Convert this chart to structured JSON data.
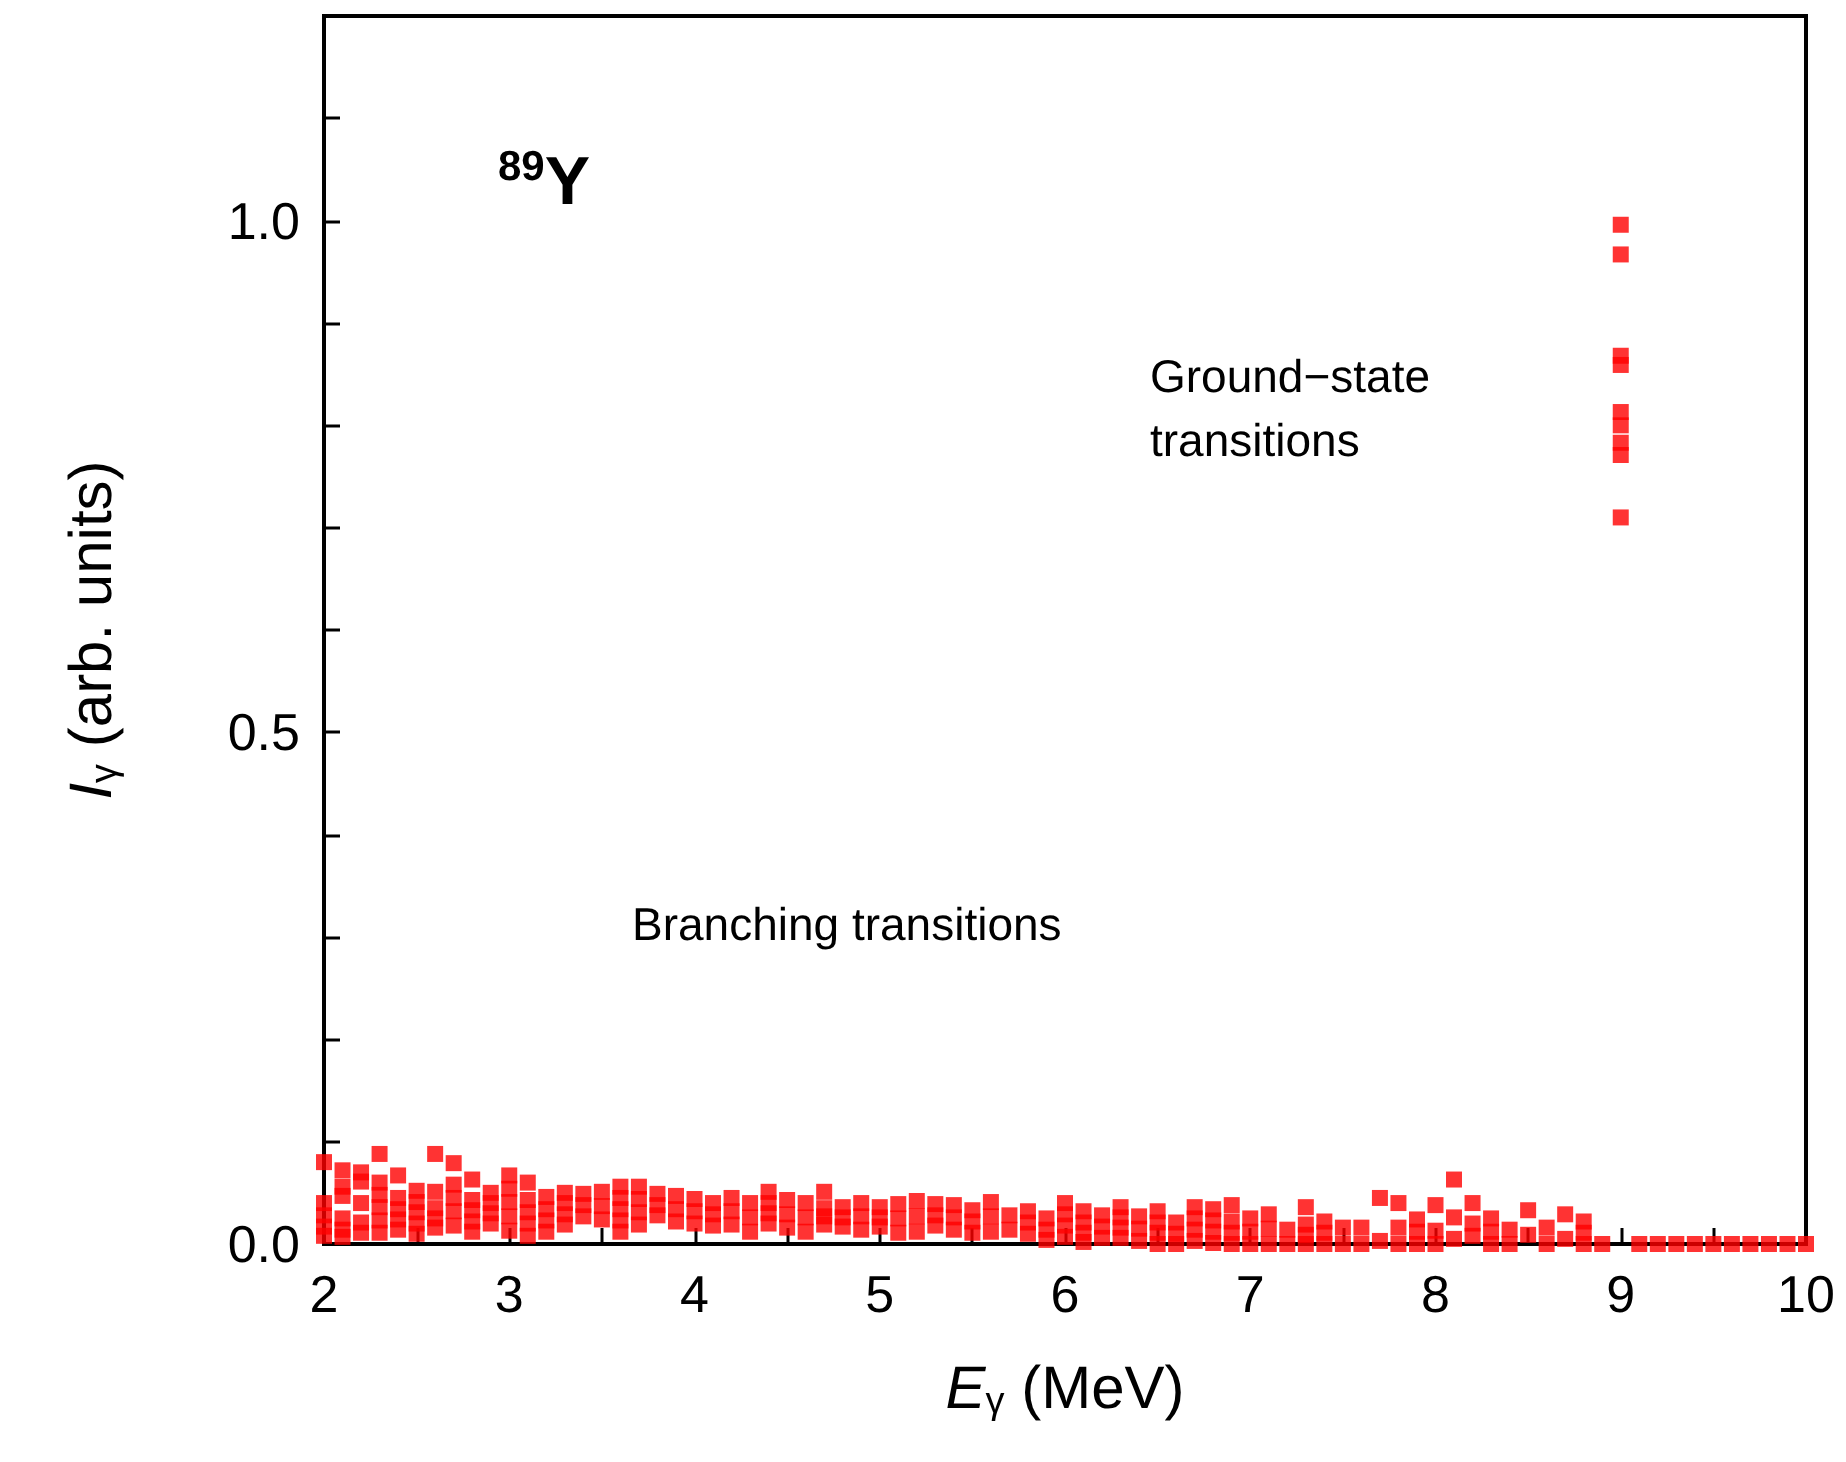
{
  "chart_data": {
    "type": "scatter",
    "title": "$^{89}$Y",
    "xlabel": "E$_{γ}$ (MeV)",
    "ylabel": "I$_{γ}$ (arb. units)",
    "annotations": [
      "Ground−state transitions",
      "Branching transitions"
    ],
    "marker": "square",
    "grid": false,
    "xlim": [
      2,
      10
    ],
    "xticks": [
      2,
      {
        "value": 2.5,
        "label": null
      },
      3,
      {
        "value": 3.5,
        "label": null
      },
      4,
      {
        "value": 4.5,
        "label": null
      },
      5,
      {
        "value": 5.5,
        "label": null
      },
      6,
      {
        "value": 6.5,
        "label": null
      },
      7,
      {
        "value": 7.5,
        "label": null
      },
      8,
      {
        "value": 8.5,
        "label": null
      },
      9,
      {
        "value": 9.5,
        "label": null
      },
      10
    ],
    "ylim": [
      0,
      1.2
    ],
    "yticks": [
      {
        "value": 0,
        "label": "0.0"
      },
      {
        "value": 0.1,
        "label": null
      },
      {
        "value": 0.2,
        "label": null
      },
      {
        "value": 0.3,
        "label": null
      },
      {
        "value": 0.4,
        "label": null
      },
      {
        "value": 0.5,
        "label": "0.5"
      },
      {
        "value": 0.6,
        "label": null
      },
      {
        "value": 0.7,
        "label": null
      },
      {
        "value": 0.8,
        "label": null
      },
      {
        "value": 0.9,
        "label": null
      },
      {
        "value": 1.0,
        "label": "1.0"
      },
      {
        "value": 1.1,
        "label": null
      }
    ],
    "series": [
      {
        "color": "#ff0000",
        "x": [
          2.0,
          2.0,
          2.0,
          2.0,
          2.0,
          2.1,
          2.1,
          2.1,
          2.1,
          2.1,
          2.1,
          2.2,
          2.2,
          2.2,
          2.2,
          2.2,
          2.3,
          2.3,
          2.3,
          2.3,
          2.3,
          2.3,
          2.4,
          2.4,
          2.4,
          2.4,
          2.4,
          2.5,
          2.5,
          2.5,
          2.5,
          2.5,
          2.6,
          2.6,
          2.6,
          2.6,
          2.6,
          2.7,
          2.7,
          2.7,
          2.7,
          2.7,
          2.8,
          2.8,
          2.8,
          2.8,
          2.8,
          2.9,
          2.9,
          2.9,
          2.9,
          3.0,
          3.0,
          3.0,
          3.0,
          3.0,
          3.1,
          3.1,
          3.1,
          3.1,
          3.1,
          3.2,
          3.2,
          3.2,
          3.2,
          3.3,
          3.3,
          3.3,
          3.3,
          3.4,
          3.4,
          3.4,
          3.5,
          3.5,
          3.5,
          3.6,
          3.6,
          3.6,
          3.6,
          3.6,
          3.7,
          3.7,
          3.7,
          3.7,
          3.8,
          3.8,
          3.8,
          3.9,
          3.9,
          3.9,
          4.0,
          4.0,
          4.0,
          4.1,
          4.1,
          4.1,
          4.2,
          4.2,
          4.2,
          4.3,
          4.3,
          4.3,
          4.4,
          4.4,
          4.4,
          4.4,
          4.5,
          4.5,
          4.5,
          4.6,
          4.6,
          4.6,
          4.7,
          4.7,
          4.7,
          4.7,
          4.8,
          4.8,
          4.8,
          4.9,
          4.9,
          4.9,
          5.0,
          5.0,
          5.0,
          5.1,
          5.1,
          5.1,
          5.2,
          5.2,
          5.2,
          5.3,
          5.3,
          5.3,
          5.4,
          5.4,
          5.4,
          5.5,
          5.5,
          5.5,
          5.6,
          5.6,
          5.6,
          5.7,
          5.7,
          5.8,
          5.8,
          5.8,
          5.9,
          5.9,
          5.9,
          6.0,
          6.0,
          6.0,
          6.0,
          6.1,
          6.1,
          6.1,
          6.1,
          6.2,
          6.2,
          6.2,
          6.3,
          6.3,
          6.3,
          6.3,
          6.4,
          6.4,
          6.4,
          6.5,
          6.5,
          6.5,
          6.5,
          6.6,
          6.6,
          6.6,
          6.7,
          6.7,
          6.7,
          6.7,
          6.8,
          6.8,
          6.8,
          6.8,
          6.9,
          6.9,
          6.9,
          6.9,
          7.0,
          7.0,
          7.0,
          7.1,
          7.1,
          7.1,
          7.2,
          7.2,
          7.3,
          7.3,
          7.3,
          7.3,
          7.4,
          7.4,
          7.4,
          7.5,
          7.5,
          7.6,
          7.6,
          7.7,
          7.7,
          7.8,
          7.8,
          7.8,
          7.9,
          7.9,
          7.9,
          8.0,
          8.0,
          8.0,
          8.1,
          8.1,
          8.1,
          8.2,
          8.2,
          8.2,
          8.3,
          8.3,
          8.3,
          8.4,
          8.4,
          8.5,
          8.5,
          8.6,
          8.6,
          8.7,
          8.7,
          8.8,
          8.8,
          8.8,
          8.9,
          9.0,
          9.0,
          9.0,
          9.0,
          9.0,
          9.0,
          9.0,
          9.0,
          9.0,
          9.1,
          9.2,
          9.3,
          9.4,
          9.5,
          9.6,
          9.7,
          9.8,
          9.9,
          10.0
        ],
        "values": [
          0.08,
          0.04,
          0.028,
          0.017,
          0.008,
          0.072,
          0.056,
          0.047,
          0.025,
          0.014,
          0.007,
          0.07,
          0.061,
          0.04,
          0.021,
          0.011,
          0.088,
          0.06,
          0.048,
          0.036,
          0.023,
          0.011,
          0.067,
          0.045,
          0.034,
          0.024,
          0.014,
          0.052,
          0.041,
          0.031,
          0.02,
          0.01,
          0.088,
          0.051,
          0.035,
          0.025,
          0.016,
          0.079,
          0.058,
          0.045,
          0.032,
          0.018,
          0.063,
          0.043,
          0.033,
          0.022,
          0.012,
          0.05,
          0.04,
          0.03,
          0.02,
          0.067,
          0.054,
          0.041,
          0.027,
          0.013,
          0.06,
          0.043,
          0.031,
          0.02,
          0.008,
          0.046,
          0.034,
          0.023,
          0.012,
          0.05,
          0.04,
          0.029,
          0.019,
          0.049,
          0.038,
          0.027,
          0.051,
          0.037,
          0.024,
          0.056,
          0.045,
          0.034,
          0.023,
          0.012,
          0.056,
          0.044,
          0.031,
          0.019,
          0.049,
          0.038,
          0.028,
          0.047,
          0.034,
          0.022,
          0.044,
          0.032,
          0.02,
          0.04,
          0.029,
          0.018,
          0.045,
          0.032,
          0.019,
          0.04,
          0.026,
          0.012,
          0.051,
          0.04,
          0.03,
          0.02,
          0.043,
          0.029,
          0.016,
          0.04,
          0.026,
          0.012,
          0.051,
          0.035,
          0.027,
          0.019,
          0.036,
          0.026,
          0.017,
          0.04,
          0.027,
          0.014,
          0.036,
          0.026,
          0.017,
          0.039,
          0.025,
          0.011,
          0.042,
          0.027,
          0.012,
          0.039,
          0.028,
          0.018,
          0.038,
          0.026,
          0.014,
          0.033,
          0.022,
          0.011,
          0.041,
          0.027,
          0.012,
          0.028,
          0.014,
          0.032,
          0.021,
          0.01,
          0.025,
          0.014,
          0.004,
          0.04,
          0.029,
          0.018,
          0.007,
          0.032,
          0.021,
          0.011,
          0.002,
          0.028,
          0.017,
          0.006,
          0.036,
          0.026,
          0.016,
          0.006,
          0.027,
          0.015,
          0.003,
          0.032,
          0.021,
          0.011,
          0.0,
          0.021,
          0.01,
          0.0,
          0.036,
          0.025,
          0.014,
          0.003,
          0.034,
          0.023,
          0.012,
          0.001,
          0.038,
          0.022,
          0.011,
          0.0,
          0.025,
          0.012,
          0.0,
          0.029,
          0.015,
          0.0,
          0.014,
          0.0,
          0.036,
          0.019,
          0.009,
          0.0,
          0.022,
          0.011,
          0.0,
          0.016,
          0.0,
          0.016,
          0.0,
          0.045,
          0.003,
          0.04,
          0.016,
          0.0,
          0.024,
          0.012,
          0.0,
          0.038,
          0.013,
          0.0,
          0.063,
          0.026,
          0.005,
          0.04,
          0.02,
          0.008,
          0.025,
          0.012,
          0.0,
          0.014,
          0.0,
          0.033,
          0.009,
          0.016,
          0.0,
          0.029,
          0.005,
          0.022,
          0.011,
          0.0,
          0.0,
          0.996,
          0.967,
          0.868,
          0.859,
          0.813,
          0.8,
          0.783,
          0.771,
          0.71,
          0,
          0,
          0,
          0,
          0,
          0,
          0,
          0,
          0,
          0
        ]
      }
    ]
  }
}
